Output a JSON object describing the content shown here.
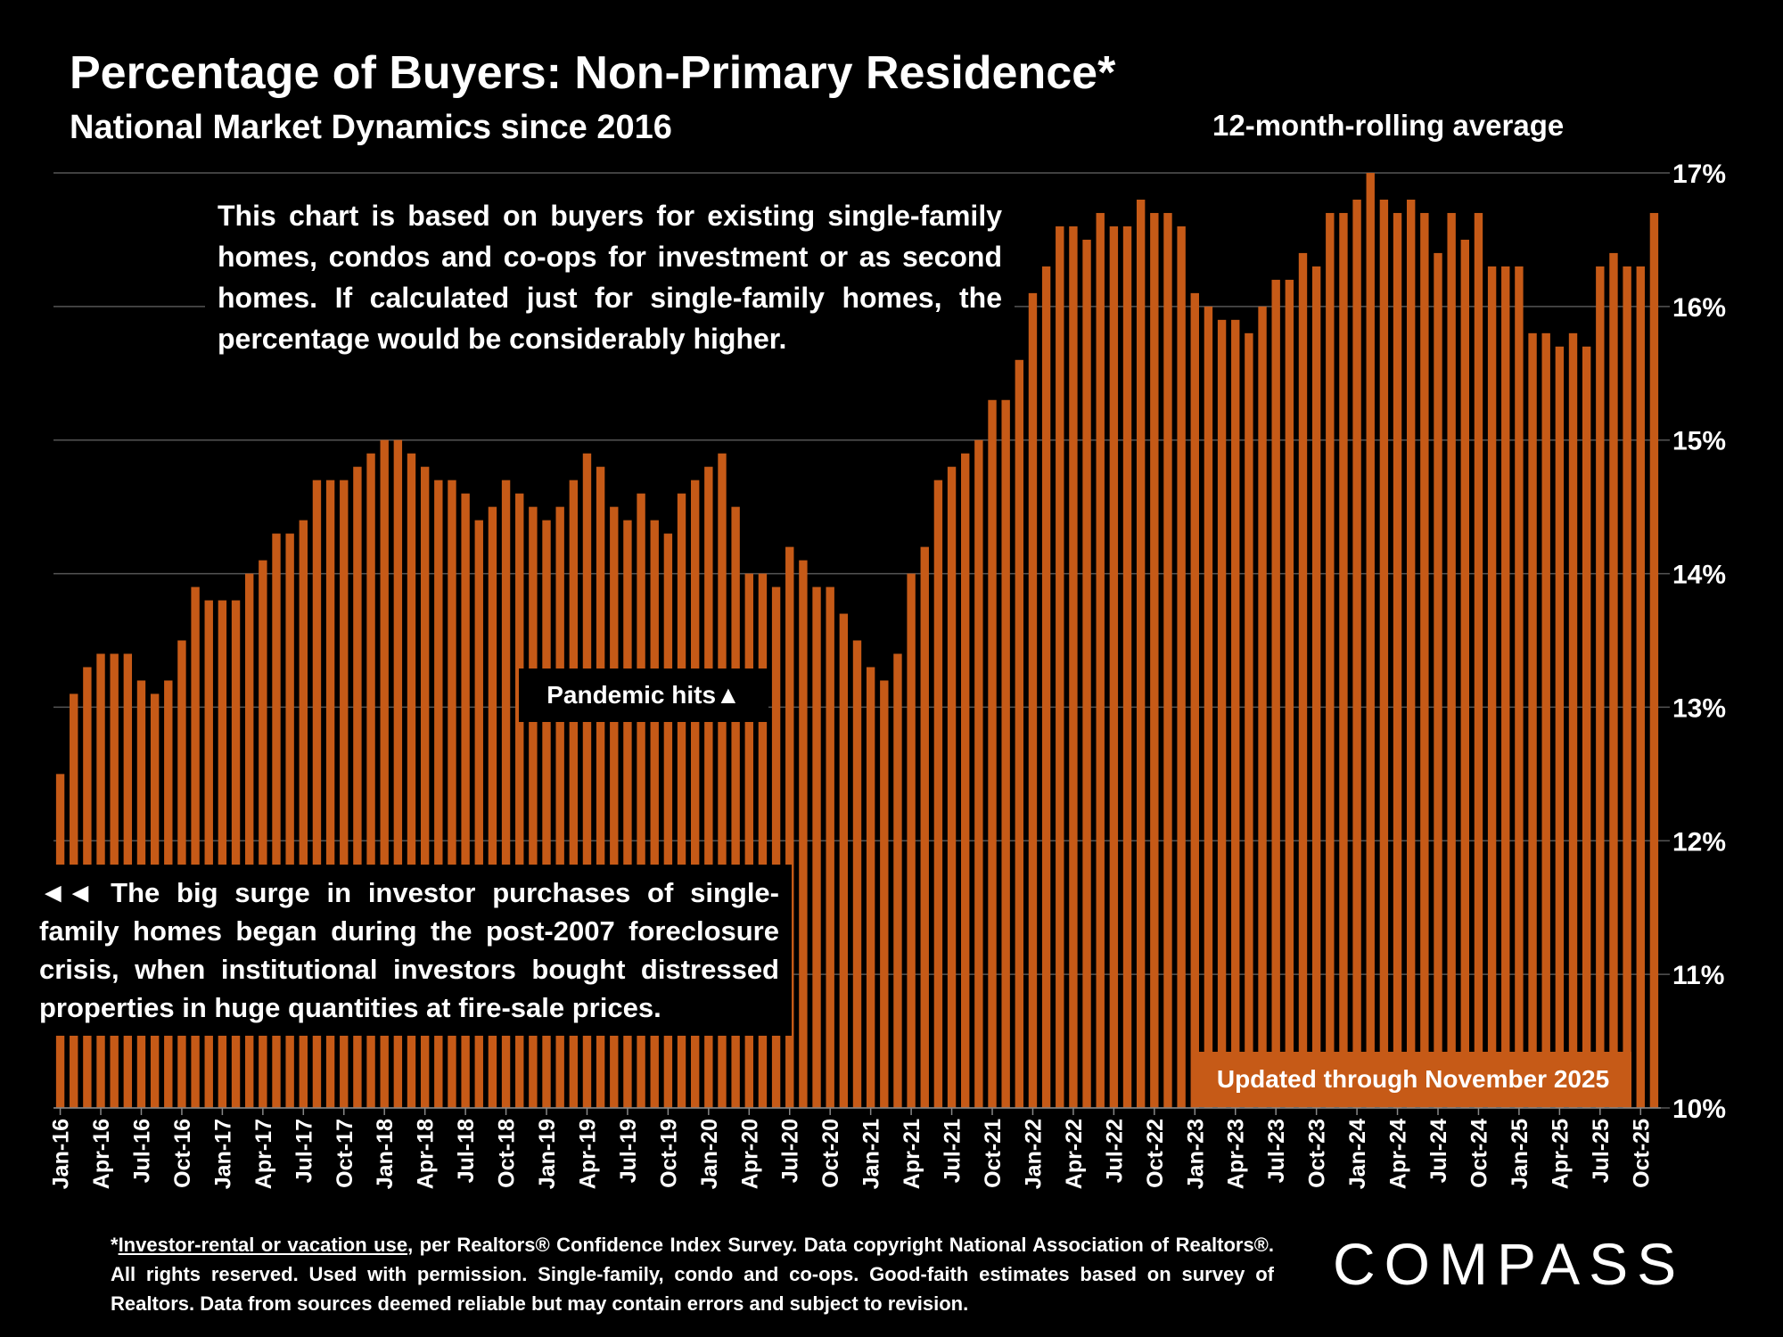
{
  "header": {
    "title": "Percentage of Buyers: Non-Primary Residence*",
    "subtitle": "National Market Dynamics since 2016",
    "rolling_note": "12-month-rolling average"
  },
  "annotations": {
    "top_note": "This chart is based on buyers for existing single-family homes, condos and co-ops for investment or as second homes. If calculated just for single-family homes, the percentage would be considerably higher.",
    "pandemic": "Pandemic hits▲",
    "bottom_note": "◄◄ The big surge in investor purchases of single-family homes began during the post-2007 foreclosure crisis, when institutional investors bought distressed properties in huge quantities at fire-sale prices.",
    "updated": "Updated through November 2025"
  },
  "footnote": {
    "lead": "*",
    "link_text": "Investor-rental or vacation use",
    "rest": ", per Realtors® Confidence Index Survey. Data copyright National Association of Realtors®. All rights reserved. Used with permission. Single-family, condo and co-ops. Good-faith estimates based on survey of Realtors. Data from sources deemed reliable but may contain errors and subject to revision."
  },
  "brand": {
    "logo_text": "COMPASS"
  },
  "colors": {
    "bar": "#C65A17",
    "background": "#000000",
    "grid": "#555555",
    "text": "#FFFFFF"
  },
  "chart_data": {
    "type": "bar",
    "title": "Percentage of Buyers: Non-Primary Residence*",
    "subtitle": "National Market Dynamics since 2016",
    "ylabel": "12-month-rolling average",
    "xlabel": "",
    "ylim": [
      10,
      17
    ],
    "y_ticks": [
      "10%",
      "11%",
      "12%",
      "13%",
      "14%",
      "15%",
      "16%",
      "17%"
    ],
    "grid": true,
    "y_axis_side": "right",
    "start_month": "Jan-16",
    "x_tick_labels": [
      "Jan-16",
      "Apr-16",
      "Jul-16",
      "Oct-16",
      "Jan-17",
      "Apr-17",
      "Jul-17",
      "Oct-17",
      "Jan-18",
      "Apr-18",
      "Jul-18",
      "Oct-18",
      "Jan-19",
      "Apr-19",
      "Jul-19",
      "Oct-19",
      "Jan-20",
      "Apr-20",
      "Jul-20",
      "Oct-20",
      "Jan-21",
      "Apr-21",
      "Jul-21",
      "Oct-21",
      "Jan-22",
      "Apr-22",
      "Jul-22",
      "Oct-22",
      "Jan-23",
      "Apr-23",
      "Jul-23",
      "Oct-23",
      "Jan-24",
      "Apr-24",
      "Jul-24",
      "Oct-24",
      "Jan-25",
      "Apr-25",
      "Jul-25",
      "Oct-25"
    ],
    "series": [
      {
        "name": "Non-primary residence buyers (%)",
        "values": [
          12.5,
          13.1,
          13.3,
          13.4,
          13.4,
          13.4,
          13.2,
          13.1,
          13.2,
          13.5,
          13.9,
          13.8,
          13.8,
          13.8,
          14.0,
          14.1,
          14.3,
          14.3,
          14.4,
          14.7,
          14.7,
          14.7,
          14.8,
          14.9,
          15.0,
          15.0,
          14.9,
          14.8,
          14.7,
          14.7,
          14.6,
          14.4,
          14.5,
          14.7,
          14.6,
          14.5,
          14.4,
          14.5,
          14.7,
          14.9,
          14.8,
          14.5,
          14.4,
          14.6,
          14.4,
          14.3,
          14.6,
          14.7,
          14.8,
          14.9,
          14.5,
          14.0,
          14.0,
          13.9,
          14.2,
          14.1,
          13.9,
          13.9,
          13.7,
          13.5,
          13.3,
          13.2,
          13.4,
          14.0,
          14.2,
          14.7,
          14.8,
          14.9,
          15.0,
          15.3,
          15.3,
          15.6,
          16.1,
          16.3,
          16.6,
          16.6,
          16.5,
          16.7,
          16.6,
          16.6,
          16.8,
          16.7,
          16.7,
          16.6,
          16.1,
          16.0,
          15.9,
          15.9,
          15.8,
          16.0,
          16.2,
          16.2,
          16.4,
          16.3,
          16.7,
          16.7,
          16.8,
          17.0,
          16.8,
          16.7,
          16.8,
          16.7,
          16.4,
          16.7,
          16.5,
          16.7,
          16.3,
          16.3,
          16.3,
          15.8,
          15.8,
          15.7,
          15.8,
          15.7,
          16.3,
          16.4,
          16.3,
          16.3,
          16.7
        ]
      }
    ]
  }
}
